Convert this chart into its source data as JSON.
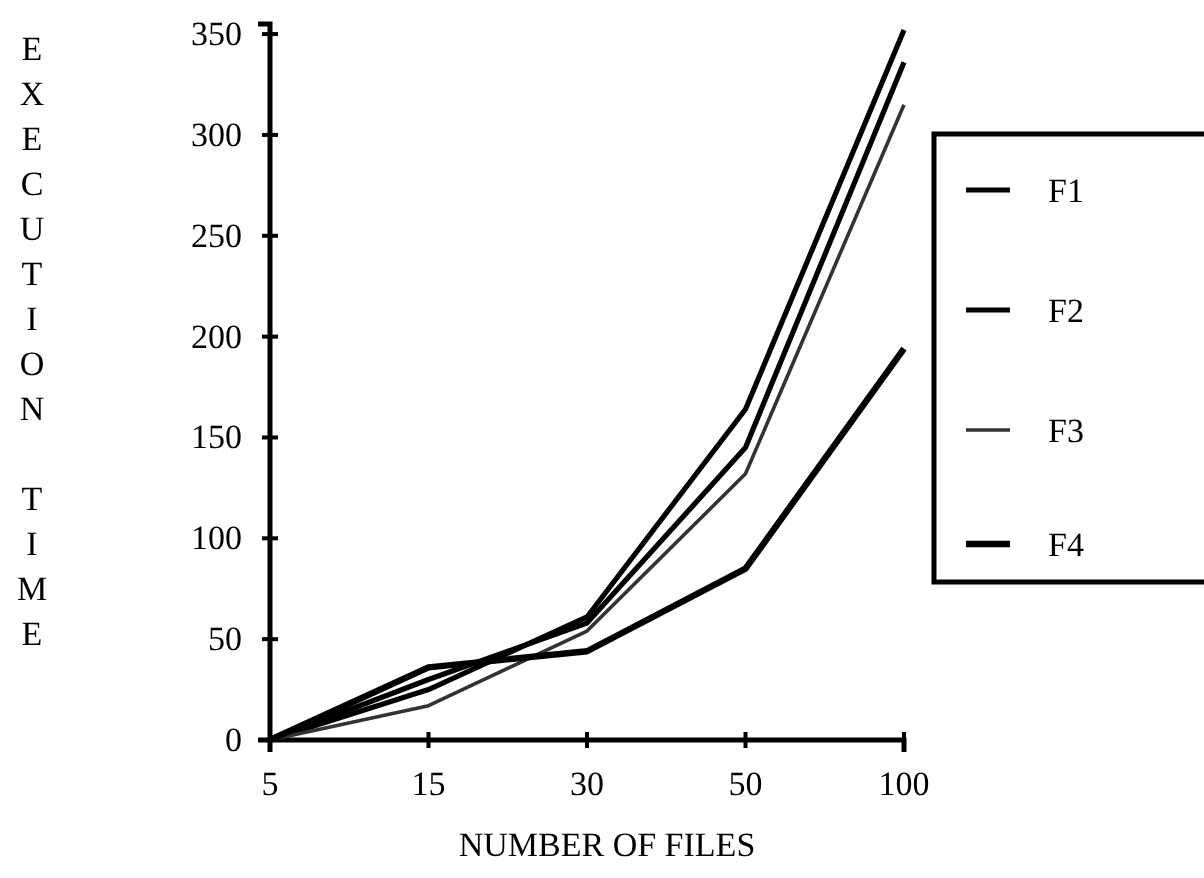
{
  "chart_data": {
    "type": "line",
    "xlabel": "NUMBER OF FILES",
    "ylabel": "EXECUTION TIME",
    "categories": [
      "5",
      "15",
      "30",
      "50",
      "100"
    ],
    "series": [
      {
        "name": "F1",
        "color": "#000000",
        "values": [
          0,
          25,
          61,
          164,
          352
        ]
      },
      {
        "name": "F2",
        "color": "#000000",
        "values": [
          0,
          30,
          58,
          145,
          336
        ]
      },
      {
        "name": "F3",
        "color": "#333333",
        "values": [
          0,
          17,
          54,
          132,
          315
        ]
      },
      {
        "name": "F4",
        "color": "#000000",
        "values": [
          0,
          36,
          44,
          85,
          194
        ]
      }
    ],
    "ylim": [
      0,
      355
    ],
    "yticks": [
      0,
      50,
      100,
      150,
      200,
      250,
      300,
      350
    ],
    "grid": false,
    "legend": "right",
    "marker": "none",
    "line_style": "solid"
  }
}
